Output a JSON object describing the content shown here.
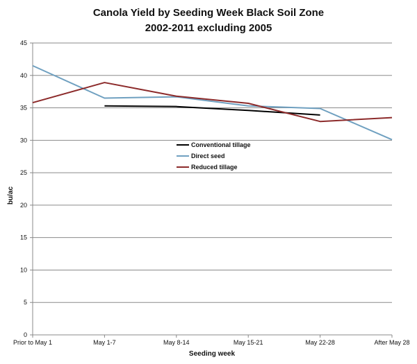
{
  "chart_data": {
    "type": "line",
    "title": "Canola Yield by Seeding Week Black Soil Zone",
    "subtitle": "2002-2011 excluding 2005",
    "xlabel": "Seeding week",
    "ylabel": "bu/ac",
    "ylim": [
      0,
      45
    ],
    "yticks": [
      0,
      5,
      10,
      15,
      20,
      25,
      30,
      35,
      40,
      45
    ],
    "categories": [
      "Prior to May 1",
      "May 1-7",
      "May 8-14",
      "May 15-21",
      "May 22-28",
      "After May 28"
    ],
    "grid": true,
    "legend_position": "center",
    "series": [
      {
        "name": "Conventional tillage",
        "color": "#000000",
        "values": [
          null,
          35.3,
          35.2,
          34.6,
          33.9,
          null
        ]
      },
      {
        "name": "Direct seed",
        "color": "#6fa0c0",
        "values": [
          41.5,
          36.5,
          36.7,
          35.3,
          34.9,
          30.1
        ]
      },
      {
        "name": "Reduced tillage",
        "color": "#8c2a2a",
        "values": [
          35.8,
          38.9,
          36.8,
          35.7,
          32.9,
          33.5
        ]
      }
    ]
  }
}
